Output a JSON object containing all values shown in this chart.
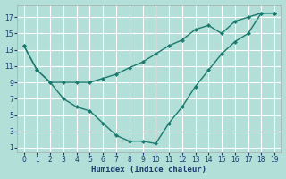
{
  "xlabel": "Humidex (Indice chaleur)",
  "background_color": "#b2dfd7",
  "grid_color": "#ffffff",
  "line_color": "#1a7a6e",
  "line1_x": [
    0,
    1,
    2,
    3,
    4,
    5,
    6,
    7,
    8,
    9,
    10,
    11,
    12,
    13,
    14,
    15,
    16,
    17,
    18,
    19
  ],
  "line1_y": [
    13.5,
    10.5,
    9.0,
    7.0,
    6.0,
    5.5,
    4.0,
    2.5,
    1.8,
    1.8,
    1.5,
    4.0,
    6.0,
    8.5,
    10.5,
    12.5,
    14.0,
    15.0,
    17.5,
    17.5
  ],
  "line2_x": [
    0,
    1,
    2,
    3,
    4,
    5,
    6,
    7,
    8,
    9,
    10,
    11,
    12,
    13,
    14,
    15,
    16,
    17,
    18,
    19
  ],
  "line2_y": [
    13.5,
    10.5,
    9.0,
    9.0,
    9.0,
    9.0,
    9.5,
    10.0,
    10.8,
    11.5,
    12.5,
    13.5,
    14.2,
    15.5,
    16.0,
    15.0,
    16.5,
    17.0,
    17.5,
    17.5
  ],
  "xlim": [
    -0.5,
    19.5
  ],
  "ylim": [
    0.5,
    18.5
  ],
  "xticks": [
    0,
    1,
    2,
    3,
    4,
    5,
    6,
    7,
    8,
    9,
    10,
    11,
    12,
    13,
    14,
    15,
    16,
    17,
    18,
    19
  ],
  "yticks": [
    1,
    3,
    5,
    7,
    9,
    11,
    13,
    15,
    17
  ]
}
